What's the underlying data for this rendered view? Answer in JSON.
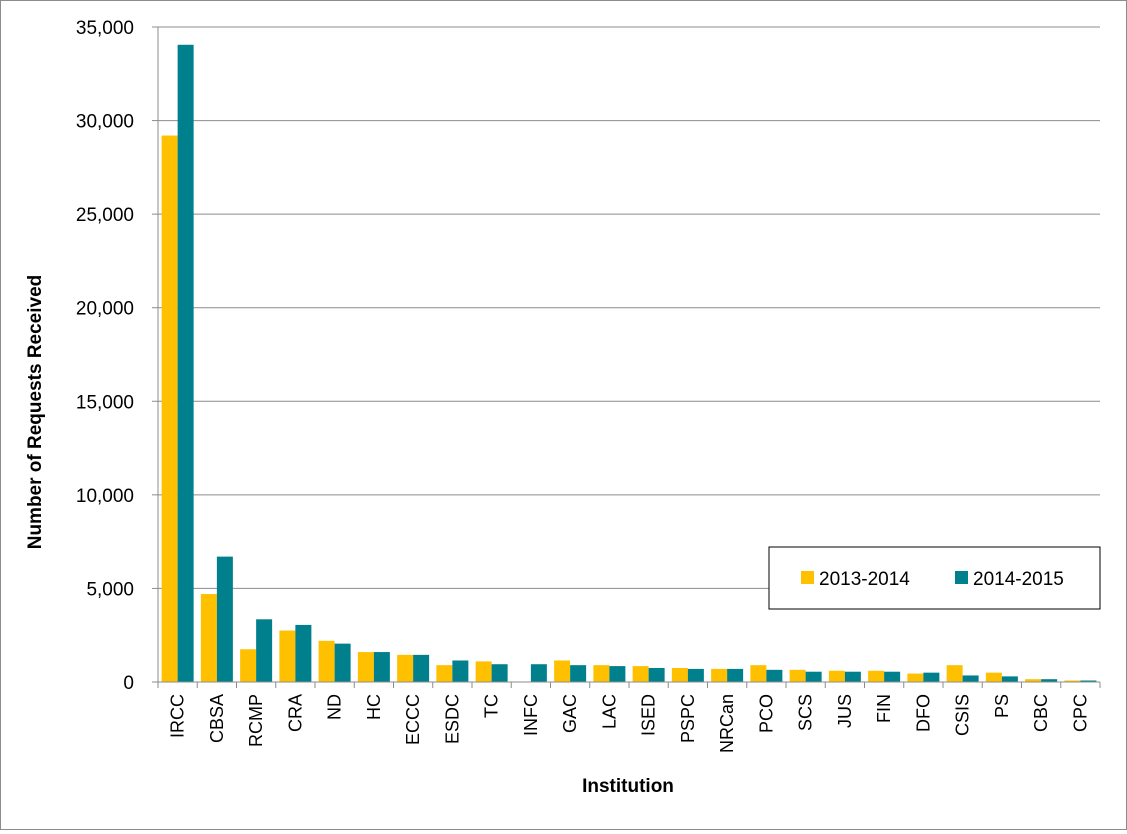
{
  "chart_data": {
    "type": "bar",
    "title": "",
    "xlabel": "Institution",
    "ylabel": "Number of Requests Received",
    "ylim": [
      0,
      35000
    ],
    "yticks": [
      0,
      5000,
      10000,
      15000,
      20000,
      25000,
      30000,
      35000
    ],
    "ytick_labels": [
      "0",
      "5,000",
      "10,000",
      "15,000",
      "20,000",
      "25,000",
      "30,000",
      "35,000"
    ],
    "grid": "horizontal",
    "legend_position": "right, lower-middle",
    "categories": [
      "IRCC",
      "CBSA",
      "RCMP",
      "CRA",
      "ND",
      "HC",
      "ECCC",
      "ESDC",
      "TC",
      "INFC",
      "GAC",
      "LAC",
      "ISED",
      "PSPC",
      "NRCan",
      "PCO",
      "SCS",
      "JUS",
      "FIN",
      "DFO",
      "CSIS",
      "PS",
      "CBC",
      "CPC"
    ],
    "series": [
      {
        "name": "2013-2014",
        "color": "#FFC000",
        "values": [
          29200,
          4700,
          1750,
          2750,
          2200,
          1600,
          1450,
          900,
          1100,
          0,
          1150,
          900,
          850,
          750,
          700,
          900,
          650,
          600,
          600,
          450,
          900,
          500,
          150,
          80
        ]
      },
      {
        "name": "2014-2015",
        "color": "#00808C",
        "values": [
          34050,
          6700,
          3350,
          3050,
          2050,
          1600,
          1450,
          1150,
          950,
          950,
          900,
          850,
          750,
          700,
          700,
          650,
          550,
          550,
          550,
          500,
          350,
          300,
          150,
          80
        ]
      }
    ]
  }
}
